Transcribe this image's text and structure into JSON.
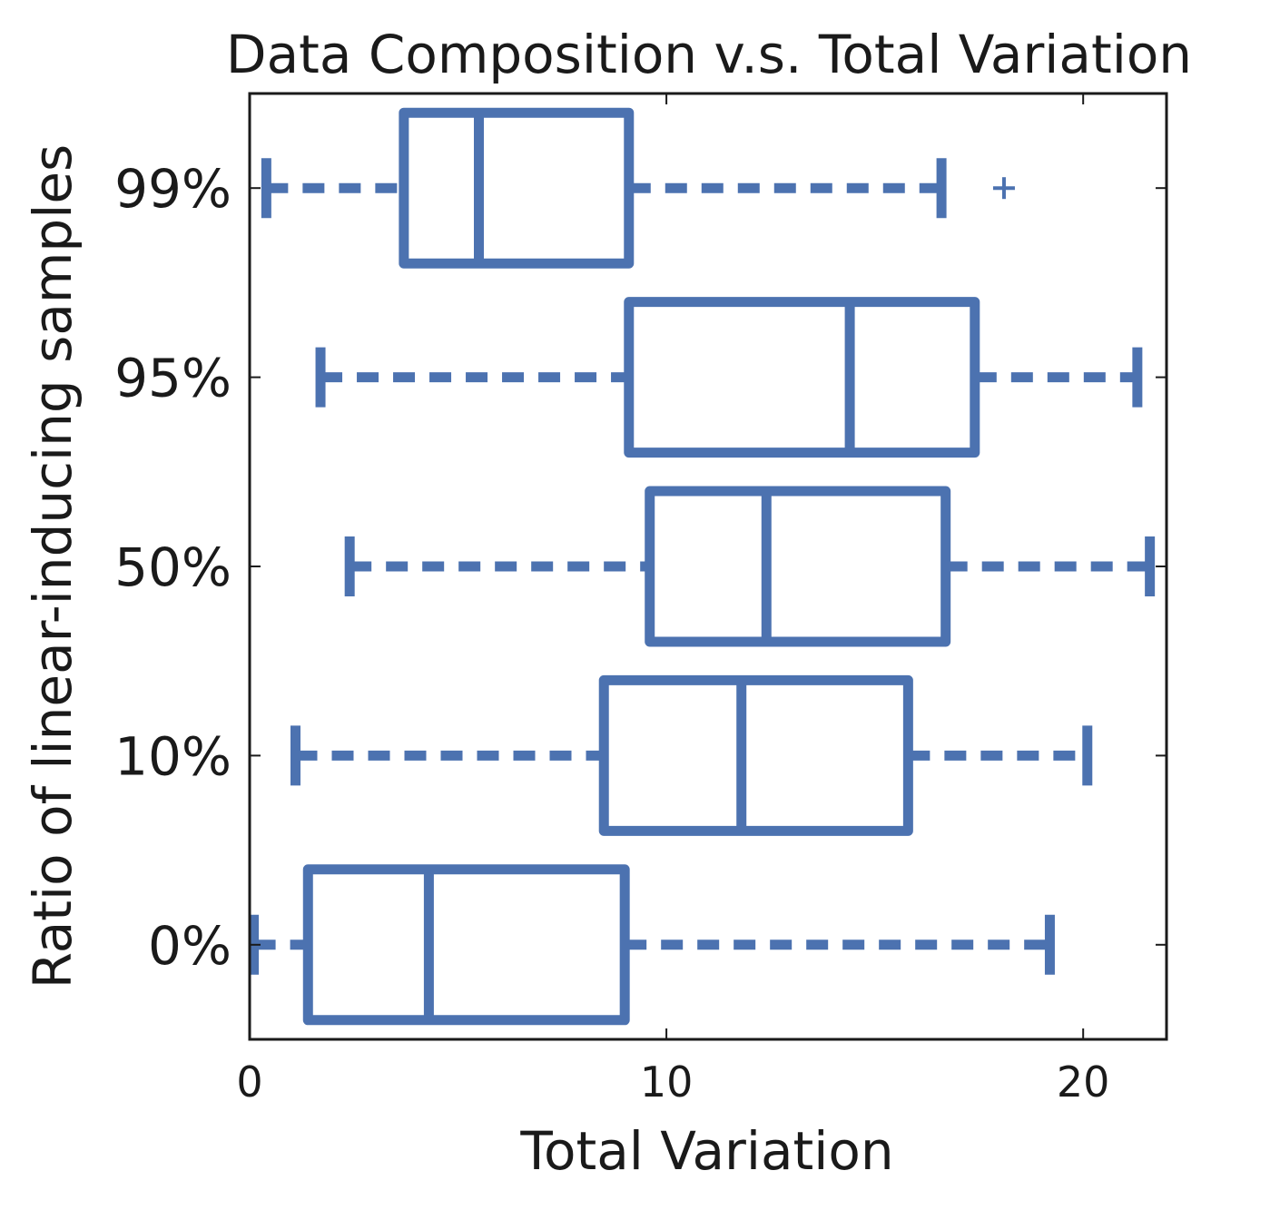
{
  "chart_data": {
    "type": "boxplot",
    "orientation": "horizontal",
    "title": "Data Composition v.s. Total Variation",
    "xlabel": "Total Variation",
    "ylabel": "Ratio of linear-inducing samples",
    "xlim": [
      0,
      22
    ],
    "x_ticks": [
      "0",
      "10",
      "20"
    ],
    "x_tick_values": [
      0,
      10,
      20
    ],
    "grid": false,
    "legend": "none",
    "color": "#4c72b0",
    "categories": [
      "0%",
      "10%",
      "50%",
      "95%",
      "99%"
    ],
    "boxes": [
      {
        "label": "0%",
        "whisker_low": 0.1,
        "q1": 1.4,
        "median": 4.3,
        "q3": 9.0,
        "whisker_high": 19.2,
        "outliers": []
      },
      {
        "label": "10%",
        "whisker_low": 1.1,
        "q1": 8.5,
        "median": 11.8,
        "q3": 15.8,
        "whisker_high": 20.1,
        "outliers": []
      },
      {
        "label": "50%",
        "whisker_low": 2.4,
        "q1": 9.6,
        "median": 12.4,
        "q3": 16.7,
        "whisker_high": 21.6,
        "outliers": []
      },
      {
        "label": "95%",
        "whisker_low": 1.7,
        "q1": 9.1,
        "median": 14.4,
        "q3": 17.4,
        "whisker_high": 21.3,
        "outliers": []
      },
      {
        "label": "99%",
        "whisker_low": 0.4,
        "q1": 3.7,
        "median": 5.5,
        "q3": 9.1,
        "whisker_high": 16.6,
        "outliers": [
          18.1
        ]
      }
    ]
  }
}
